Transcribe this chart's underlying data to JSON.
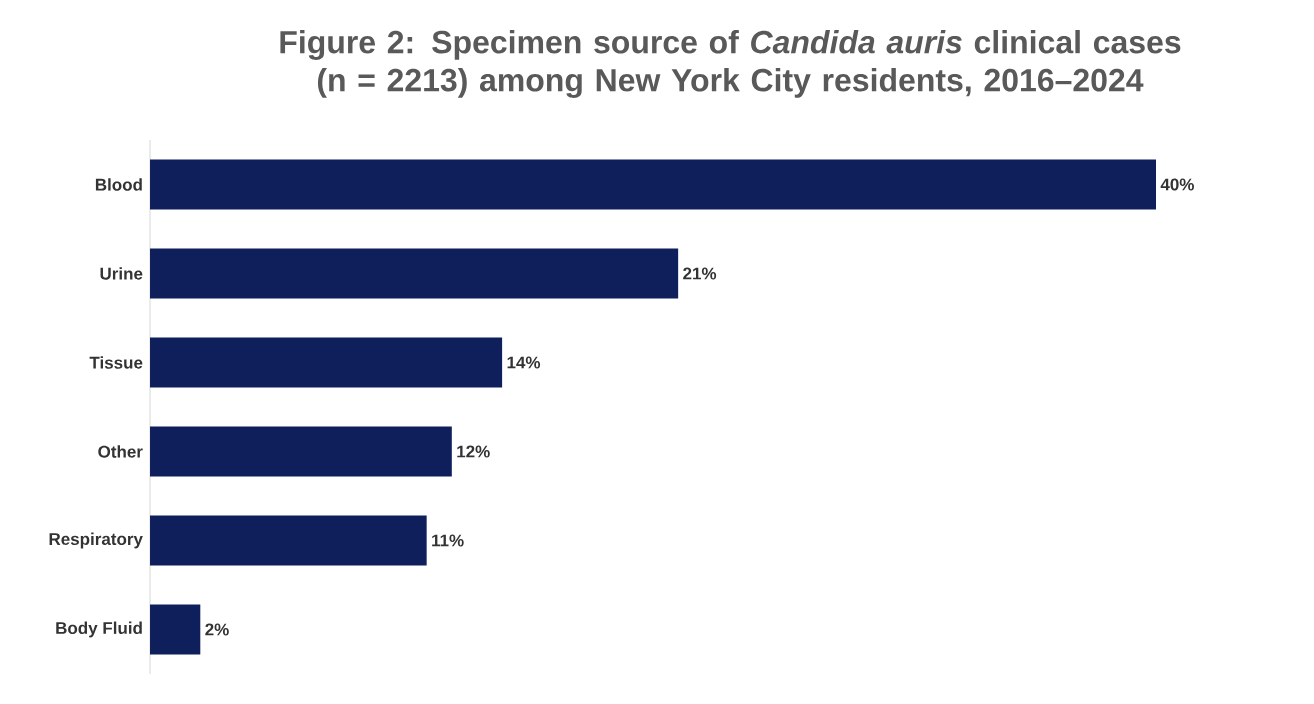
{
  "chart_data": {
    "type": "bar",
    "orientation": "horizontal",
    "title": "Figure 2: Specimen source of *Candida auris* clinical cases (n = 2213) among New York City residents, 2016–2024",
    "categories": [
      "Blood",
      "Urine",
      "Tissue",
      "Other",
      "Respiratory",
      "Body Fluid"
    ],
    "values": [
      40,
      21,
      14,
      12,
      11,
      2
    ],
    "value_labels": [
      "40%",
      "21%",
      "14%",
      "12%",
      "11%",
      "2%"
    ],
    "color": "#0f1f5c",
    "grid": false
  }
}
